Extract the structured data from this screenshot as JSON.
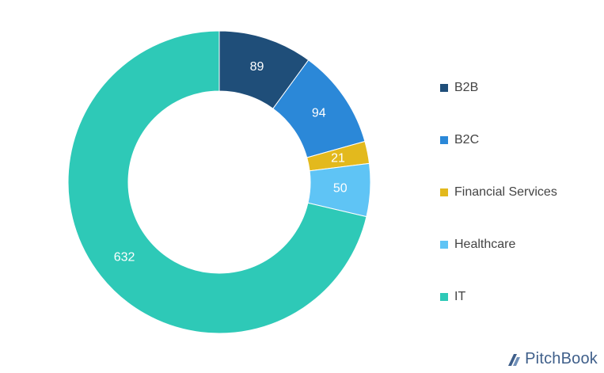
{
  "chart_data": {
    "type": "pie",
    "donut": true,
    "categories": [
      "B2B",
      "B2C",
      "Financial Services",
      "Healthcare",
      "IT"
    ],
    "values": [
      89,
      94,
      21,
      50,
      632
    ],
    "colors": [
      "#1f4e79",
      "#2b88d8",
      "#e3b91d",
      "#5fc4f5",
      "#2ec9b7"
    ],
    "legend_position": "right"
  },
  "brand": {
    "name": "PitchBook"
  }
}
